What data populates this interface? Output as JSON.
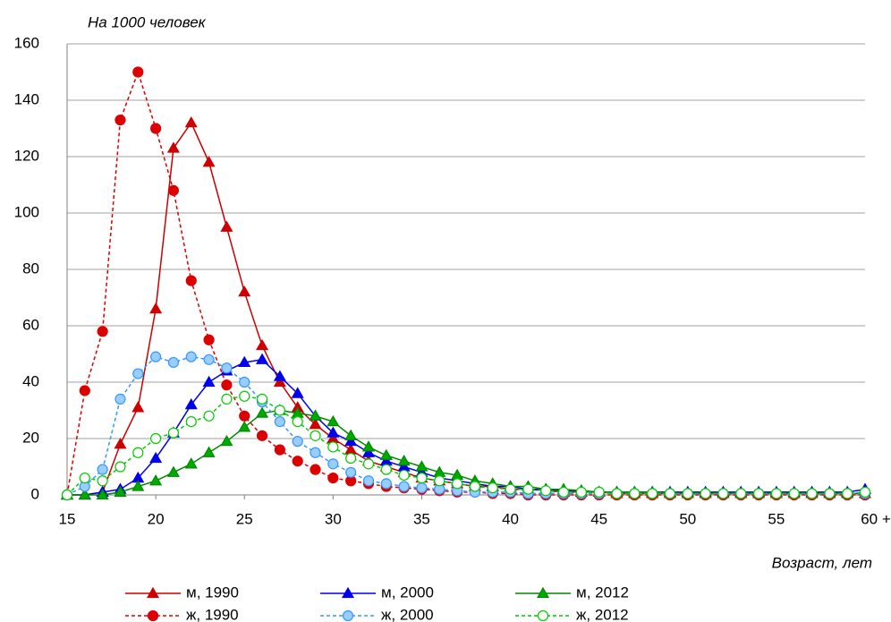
{
  "chart_data": {
    "type": "line",
    "ylabel": "На 1000 человек",
    "xlabel": "Возраст, лет",
    "x": [
      15,
      16,
      17,
      18,
      19,
      20,
      21,
      22,
      23,
      24,
      25,
      26,
      27,
      28,
      29,
      30,
      31,
      32,
      33,
      34,
      35,
      36,
      37,
      38,
      39,
      40,
      41,
      42,
      43,
      44,
      45,
      46,
      47,
      48,
      49,
      50,
      51,
      52,
      53,
      54,
      55,
      56,
      57,
      58,
      59,
      60
    ],
    "xlim": [
      15,
      60
    ],
    "xticks": [
      15,
      20,
      25,
      30,
      35,
      40,
      45,
      50,
      55,
      {
        "value": 60,
        "label": "60 +"
      }
    ],
    "ylim": [
      0,
      160
    ],
    "yticks": [
      0,
      20,
      40,
      60,
      80,
      100,
      120,
      140,
      160
    ],
    "grid": true,
    "series": [
      {
        "name": "м, 1990",
        "color": "#cc0000",
        "marker": "triangle",
        "marker_fill": "#cc0000",
        "dash": false,
        "values": [
          0,
          0,
          1,
          18,
          31,
          66,
          123,
          132,
          118,
          95,
          72,
          53,
          40,
          31,
          25,
          20,
          16,
          12,
          10,
          8,
          6,
          5,
          4,
          3,
          3,
          2,
          2,
          1.5,
          1,
          1,
          1,
          0.5,
          0.5,
          0.5,
          0.5,
          0.5,
          0.5,
          0.5,
          0.5,
          0.5,
          0.5,
          0.5,
          0.5,
          0.5,
          0.5,
          0.5
        ]
      },
      {
        "name": "м, 2000",
        "color": "#0000ee",
        "marker": "triangle",
        "marker_fill": "#0000ee",
        "dash": false,
        "values": [
          0,
          0,
          1,
          2,
          6,
          13,
          22,
          32,
          40,
          44,
          47,
          48,
          42,
          36,
          28,
          22,
          19,
          15,
          12,
          10,
          8,
          6,
          5,
          4,
          3,
          3,
          2,
          2,
          1.5,
          1.5,
          1,
          1,
          1,
          1,
          1,
          1,
          1,
          1,
          1,
          1,
          1,
          1,
          1,
          1,
          1,
          2
        ]
      },
      {
        "name": "м, 2012",
        "color": "#008800",
        "marker": "triangle",
        "marker_fill": "#00aa00",
        "dash": false,
        "values": [
          0,
          0,
          0,
          1,
          3,
          5,
          8,
          11,
          15,
          19,
          24,
          29,
          30,
          29,
          28,
          26,
          21,
          17,
          14,
          12,
          10,
          8,
          7,
          5,
          4,
          3,
          3,
          2,
          2,
          1.5,
          1,
          1,
          1,
          1,
          0.5,
          0.5,
          0.5,
          0.5,
          0.5,
          0.5,
          0.5,
          0.5,
          0.5,
          0.5,
          0.5,
          0.5
        ]
      },
      {
        "name": "ж, 1990",
        "color": "#dd0000",
        "marker": "circle",
        "marker_fill": "#dd0000",
        "dash": true,
        "values": [
          0,
          37,
          58,
          133,
          150,
          130,
          108,
          76,
          55,
          39,
          28,
          21,
          16,
          12,
          9,
          6,
          5,
          4,
          3,
          2.5,
          2,
          1.5,
          1,
          1,
          0.5,
          0.5,
          0,
          0,
          0,
          0,
          0,
          0,
          0,
          0,
          0,
          0,
          0,
          0,
          0,
          0,
          0,
          0,
          0,
          0,
          0,
          0
        ]
      },
      {
        "name": "ж, 2000",
        "color": "#3399ff",
        "marker": "circle",
        "marker_fill": "#99ccff",
        "dash": true,
        "values": [
          0,
          3,
          9,
          34,
          43,
          49,
          47,
          49,
          48,
          45,
          40,
          33,
          26,
          19,
          15,
          11,
          8,
          5,
          4,
          3,
          2.5,
          2,
          1.5,
          1,
          1,
          1,
          0.5,
          0.5,
          0.5,
          0.5,
          0.5,
          0.5,
          0.5,
          0.5,
          0.5,
          0.5,
          0.5,
          0.5,
          0.5,
          0.5,
          0.5,
          0.5,
          0.5,
          0.5,
          0.5,
          0.5
        ]
      },
      {
        "name": "ж, 2012",
        "color": "#00cc00",
        "marker": "circle",
        "marker_fill": "#ffffff",
        "dash": true,
        "values": [
          0,
          6,
          5,
          10,
          15,
          20,
          22,
          26,
          28,
          34,
          35,
          34,
          30,
          26,
          21,
          17,
          13,
          11,
          9,
          7,
          6,
          5,
          4,
          3,
          2.5,
          2,
          2,
          1.5,
          1,
          1,
          1,
          0.5,
          0.5,
          0.5,
          0.5,
          0.5,
          0.5,
          0.5,
          0.5,
          0.5,
          0.5,
          0.5,
          0.5,
          0.5,
          0.5,
          1
        ]
      }
    ]
  }
}
